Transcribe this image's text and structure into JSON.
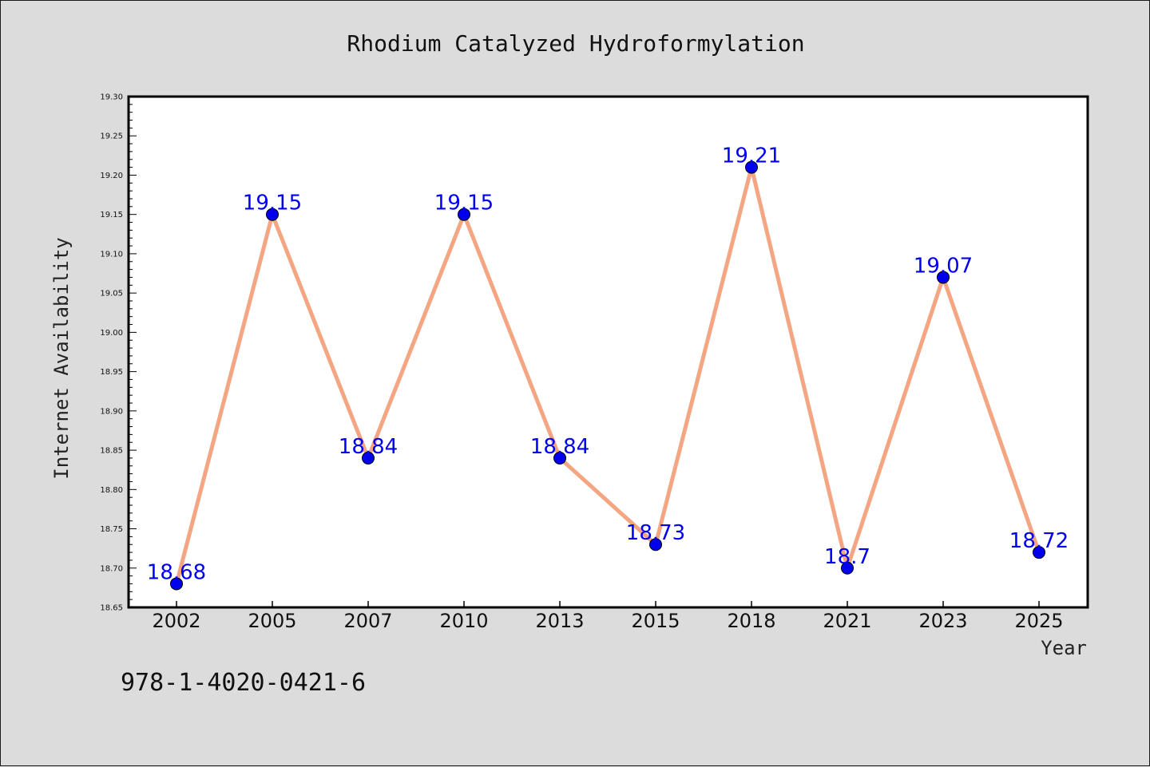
{
  "chart_data": {
    "type": "line",
    "title": "Rhodium Catalyzed Hydroformylation",
    "xlabel": "Year",
    "ylabel": "Internet Availability",
    "categories": [
      "2002",
      "2005",
      "2007",
      "2010",
      "2013",
      "2015",
      "2018",
      "2021",
      "2023",
      "2025"
    ],
    "series": [
      {
        "values": [
          18.68,
          19.15,
          18.84,
          19.15,
          18.84,
          18.73,
          19.21,
          18.7,
          19.07,
          18.72
        ],
        "data_labels": [
          "18.68",
          "19.15",
          "18.84",
          "19.15",
          "18.84",
          "18.73",
          "19.21",
          "18.7",
          "19.07",
          "18.72"
        ],
        "line_color": "#f4a582",
        "marker_color": "#0000ee"
      }
    ],
    "ylim": [
      18.65,
      19.3
    ],
    "yticks": [
      "18.65",
      "18.70",
      "18.75",
      "18.80",
      "18.85",
      "18.90",
      "18.95",
      "19.00",
      "19.05",
      "19.10",
      "19.15",
      "19.20",
      "19.25",
      "19.30"
    ],
    "grid": false,
    "legend": "none",
    "background_color": "#dcdcdc",
    "plot_background_color": "#ffffff",
    "label_color": "#0000ee"
  },
  "footer": {
    "isbn": "978-1-4020-0421-6"
  }
}
